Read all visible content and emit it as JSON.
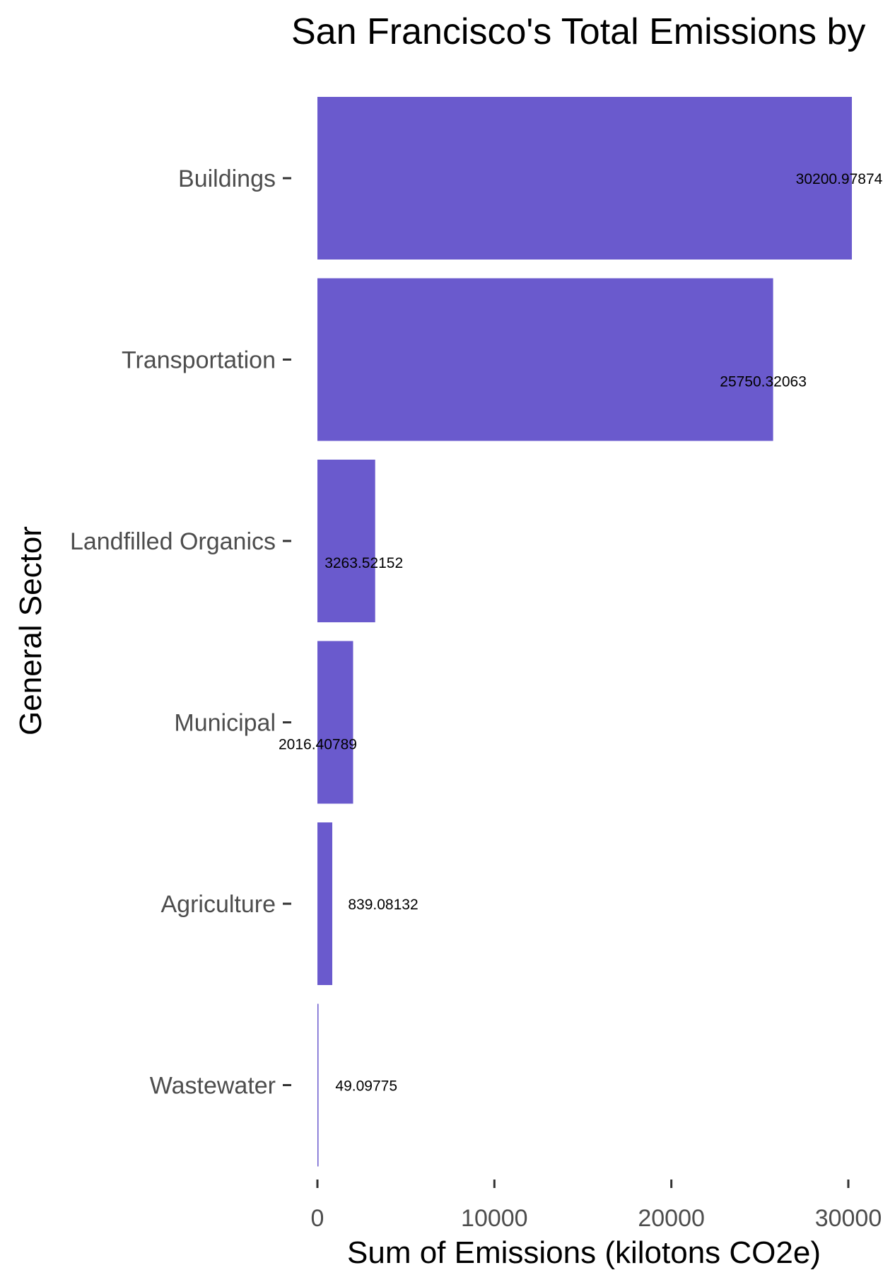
{
  "chart_data": {
    "type": "bar",
    "orientation": "horizontal",
    "title": "San Francisco's Total Emissions by",
    "xlabel": "Sum of Emissions (kilotons CO2e)",
    "ylabel": "General Sector",
    "categories": [
      "Buildings",
      "Transportation",
      "Landfilled Organics",
      "Municipal",
      "Agriculture",
      "Wastewater"
    ],
    "values": [
      30200.97874,
      25750.32063,
      3263.52152,
      2016.40789,
      839.08132,
      49.09775
    ],
    "labels": [
      "30200.97874",
      "25750.32063",
      "3263.52152",
      "2016.40789",
      "839.08132",
      "49.09775"
    ],
    "xticks": [
      0,
      10000,
      20000,
      30000
    ],
    "xtick_labels": [
      "0",
      "10000",
      "20000",
      "30000"
    ],
    "xlim": [
      0,
      30200.97874
    ],
    "bar_color": "#6a5acd",
    "grid": false,
    "legend": "none"
  }
}
